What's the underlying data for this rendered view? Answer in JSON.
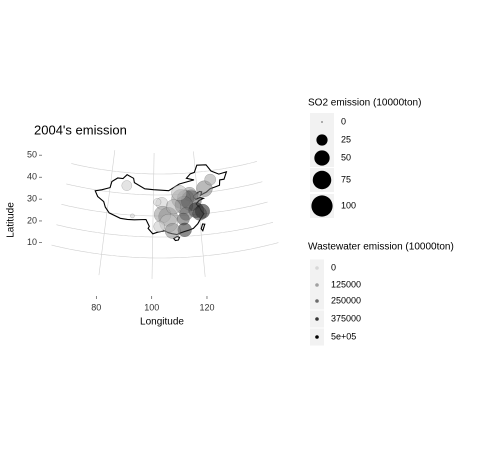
{
  "chart_data": {
    "type": "map",
    "title": "2004's emission",
    "xlabel": "Longitude",
    "ylabel": "Latitude",
    "xlim": [
      60,
      150
    ],
    "ylim": [
      0,
      60
    ],
    "xticks": [
      80,
      100,
      120
    ],
    "yticks": [
      10,
      20,
      30,
      40,
      50
    ],
    "points": {
      "lon": [
        87.6,
        103.8,
        116.4,
        117.2,
        114.5,
        112.5,
        117.0,
        113.6,
        118.8,
        121.5,
        120.2,
        114.3,
        113.0,
        113.3,
        106.5,
        104.1,
        106.7,
        102.7,
        108.3,
        108.9,
        123.4,
        126.6,
        111.7,
        101.8,
        91.1
      ],
      "lat": [
        43.8,
        36.0,
        39.9,
        39.1,
        38.0,
        37.9,
        36.7,
        34.8,
        32.0,
        31.2,
        30.3,
        30.6,
        28.2,
        23.1,
        29.6,
        30.7,
        26.6,
        25.0,
        22.8,
        34.3,
        41.8,
        45.8,
        40.8,
        36.6,
        29.6
      ],
      "so2": [
        20,
        30,
        40,
        30,
        60,
        80,
        90,
        70,
        50,
        45,
        40,
        35,
        30,
        40,
        80,
        60,
        70,
        25,
        50,
        45,
        55,
        25,
        50,
        10,
        2
      ],
      "wastewater": [
        20000,
        30000,
        150000,
        100000,
        200000,
        150000,
        300000,
        250000,
        400000,
        450000,
        350000,
        250000,
        300000,
        400000,
        200000,
        150000,
        50000,
        40000,
        180000,
        100000,
        200000,
        120000,
        60000,
        10000,
        5000
      ]
    },
    "size_legend": {
      "title": "SO2 emission (10000ton)",
      "breaks": [
        0,
        25,
        50,
        75,
        100
      ]
    },
    "color_legend": {
      "title": "Wastewater emission (10000ton)",
      "breaks": [
        0,
        125000,
        250000,
        375000,
        {
          "value": 500000,
          "label": "5e+05"
        }
      ]
    }
  }
}
